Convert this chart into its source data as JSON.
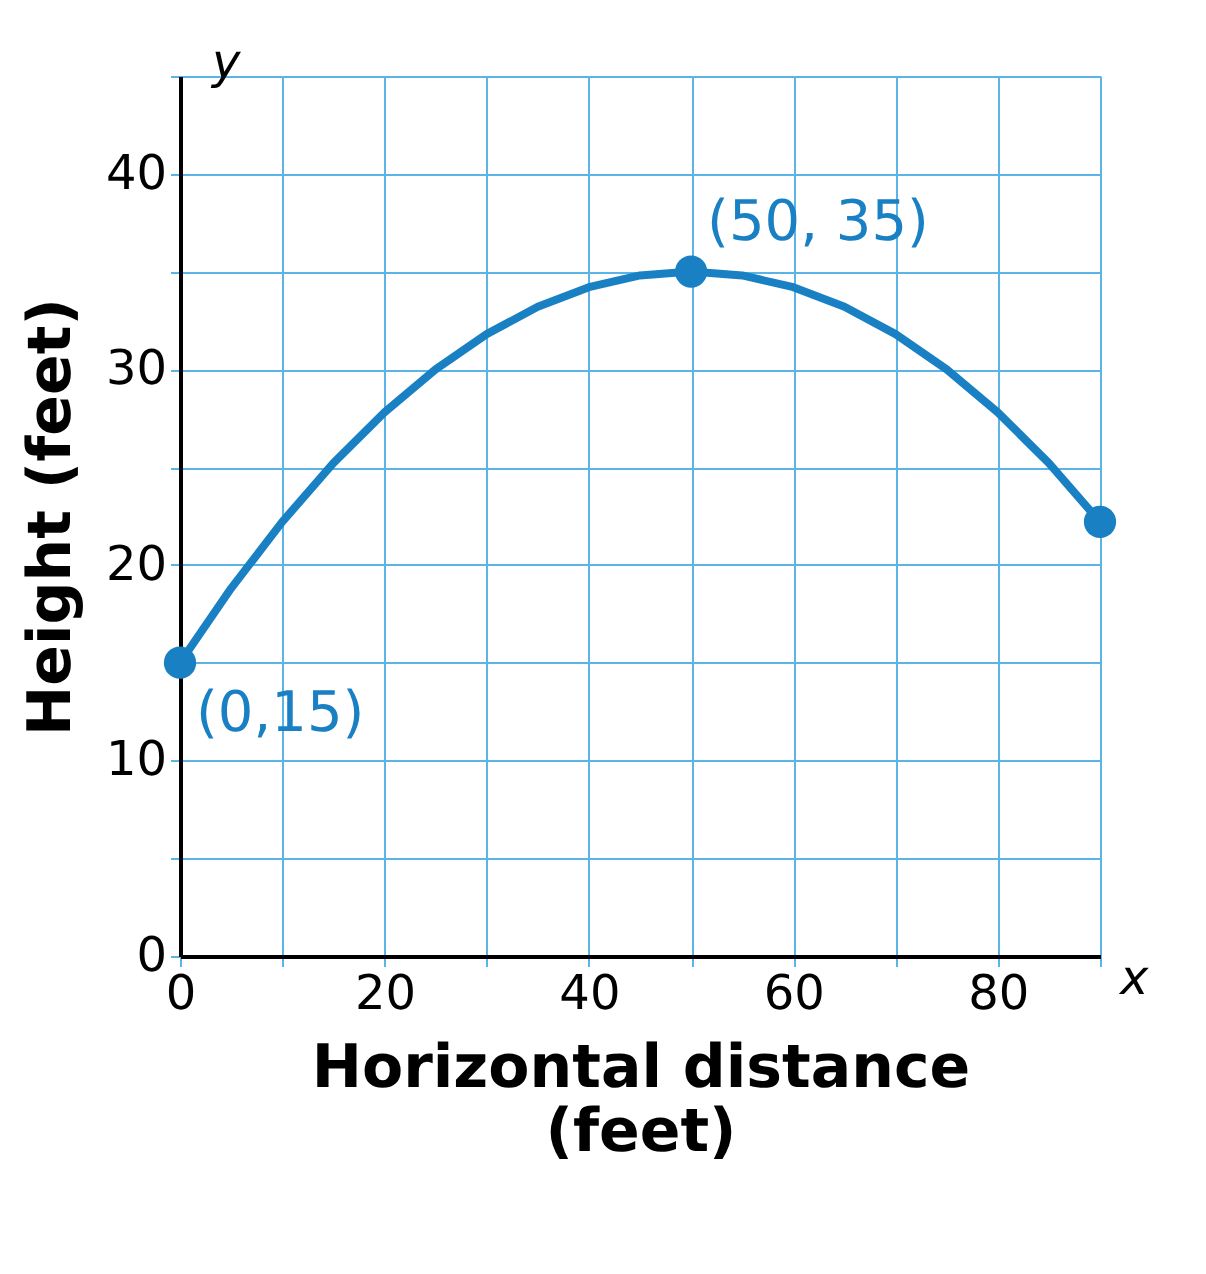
{
  "chart_data": {
    "type": "line",
    "xlabel": "Horizontal distance (feet)",
    "ylabel": "Height (feet)",
    "xlim": [
      0,
      90
    ],
    "ylim": [
      0,
      45
    ],
    "xticks": [
      0,
      {
        "value": 10,
        "label": null
      },
      20,
      {
        "value": 30,
        "label": null
      },
      40,
      {
        "value": 50,
        "label": null
      },
      60,
      {
        "value": 70,
        "label": null
      },
      80,
      {
        "value": 90,
        "label": null
      }
    ],
    "yticks": [
      0,
      {
        "value": 5,
        "label": null
      },
      10,
      {
        "value": 15,
        "label": null
      },
      20,
      {
        "value": 25,
        "label": null
      },
      30,
      {
        "value": 35,
        "label": null
      },
      40,
      {
        "value": 45,
        "label": null
      }
    ],
    "grid": true,
    "marker": "none",
    "line_style": "solid",
    "series": [
      {
        "color": "#1a80c4",
        "x": [
          0,
          5,
          10,
          15,
          20,
          25,
          30,
          35,
          40,
          45,
          50,
          55,
          60,
          65,
          70,
          75,
          80,
          85,
          90
        ],
        "values": [
          15,
          18.8,
          22.2,
          25.2,
          27.8,
          30,
          31.8,
          33.2,
          34.2,
          34.8,
          35,
          34.8,
          34.2,
          33.2,
          31.8,
          30,
          27.8,
          25.2,
          22.2
        ]
      },
      {
        "type": "scatter",
        "color": "#1a80c4",
        "marker": "circle",
        "x": [
          0,
          50,
          90
        ],
        "values": [
          15,
          35,
          22.2
        ]
      }
    ],
    "annotations": [
      "y",
      "x",
      {
        "text": "(0,15)",
        "x": 0,
        "y": 15
      },
      {
        "text": "(50, 35)",
        "x": 50,
        "y": 35
      }
    ]
  }
}
